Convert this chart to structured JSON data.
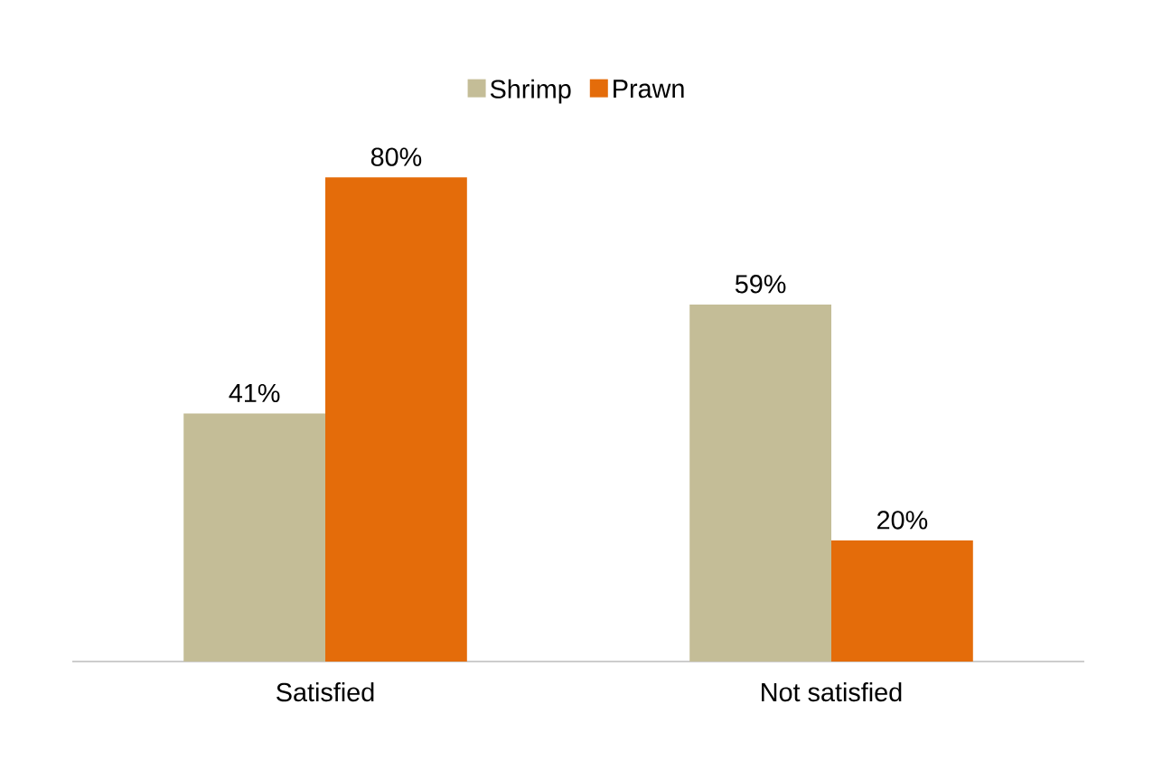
{
  "chart_data": {
    "type": "bar",
    "categories": [
      "Satisfied",
      "Not satisfied"
    ],
    "series": [
      {
        "name": "Shrimp",
        "color": "#c4bd97",
        "values": [
          41,
          59
        ],
        "value_labels": [
          "41%",
          "59%"
        ]
      },
      {
        "name": "Prawn",
        "color": "#e46c0a",
        "values": [
          80,
          20
        ],
        "value_labels": [
          "80%",
          "20%"
        ]
      }
    ],
    "legend": "top"
  }
}
